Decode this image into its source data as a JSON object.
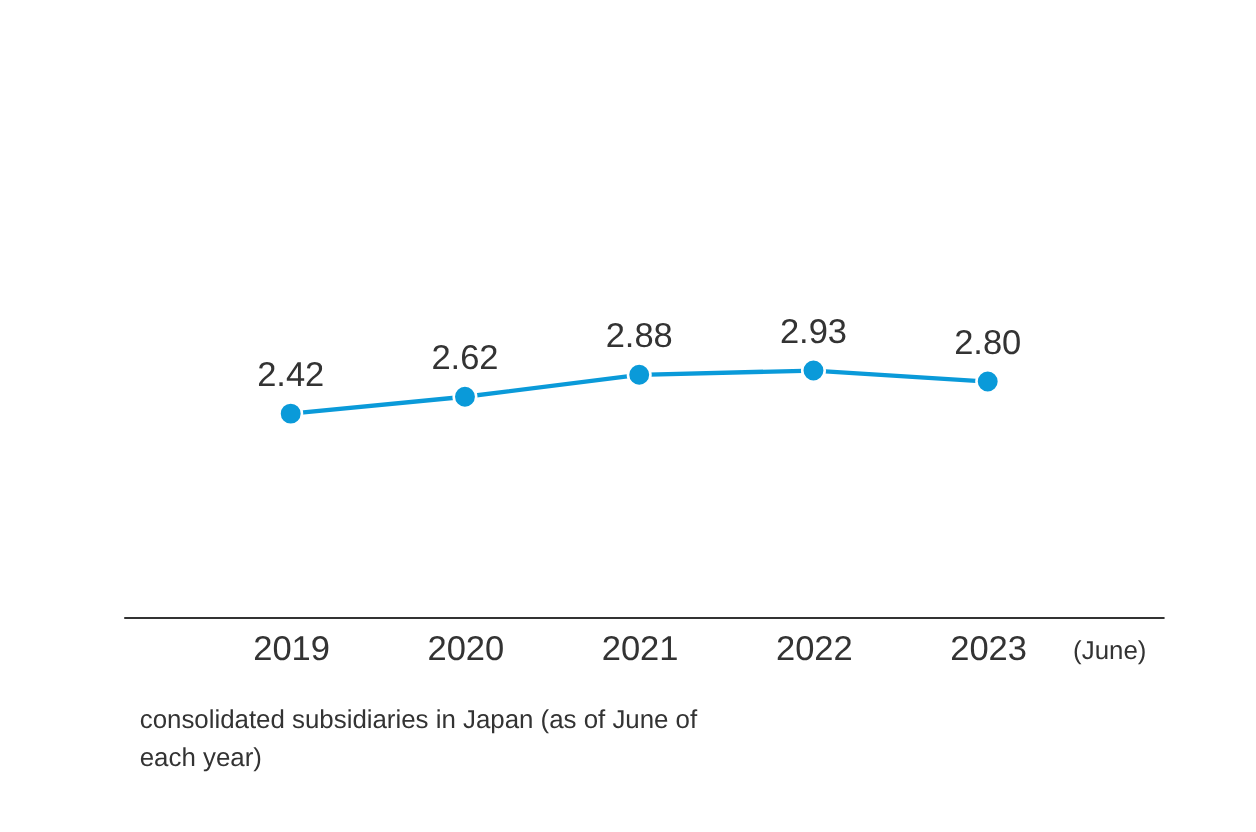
{
  "chart_data": {
    "type": "line",
    "categories": [
      "2019",
      "2020",
      "2021",
      "2022",
      "2023"
    ],
    "series": [
      {
        "color": "#0a9ad9",
        "values": [
          2.42,
          2.62,
          2.88,
          2.93,
          2.8
        ],
        "value_labels": [
          "2.42",
          "2.62",
          "2.88",
          "2.93",
          "2.80"
        ]
      }
    ],
    "tick_labels": "x",
    "grid": false,
    "marker": "circle",
    "line_style": "solid",
    "annotations": [
      "(June)",
      "consolidated subsidiaries in Japan (as of June of each year)"
    ]
  }
}
